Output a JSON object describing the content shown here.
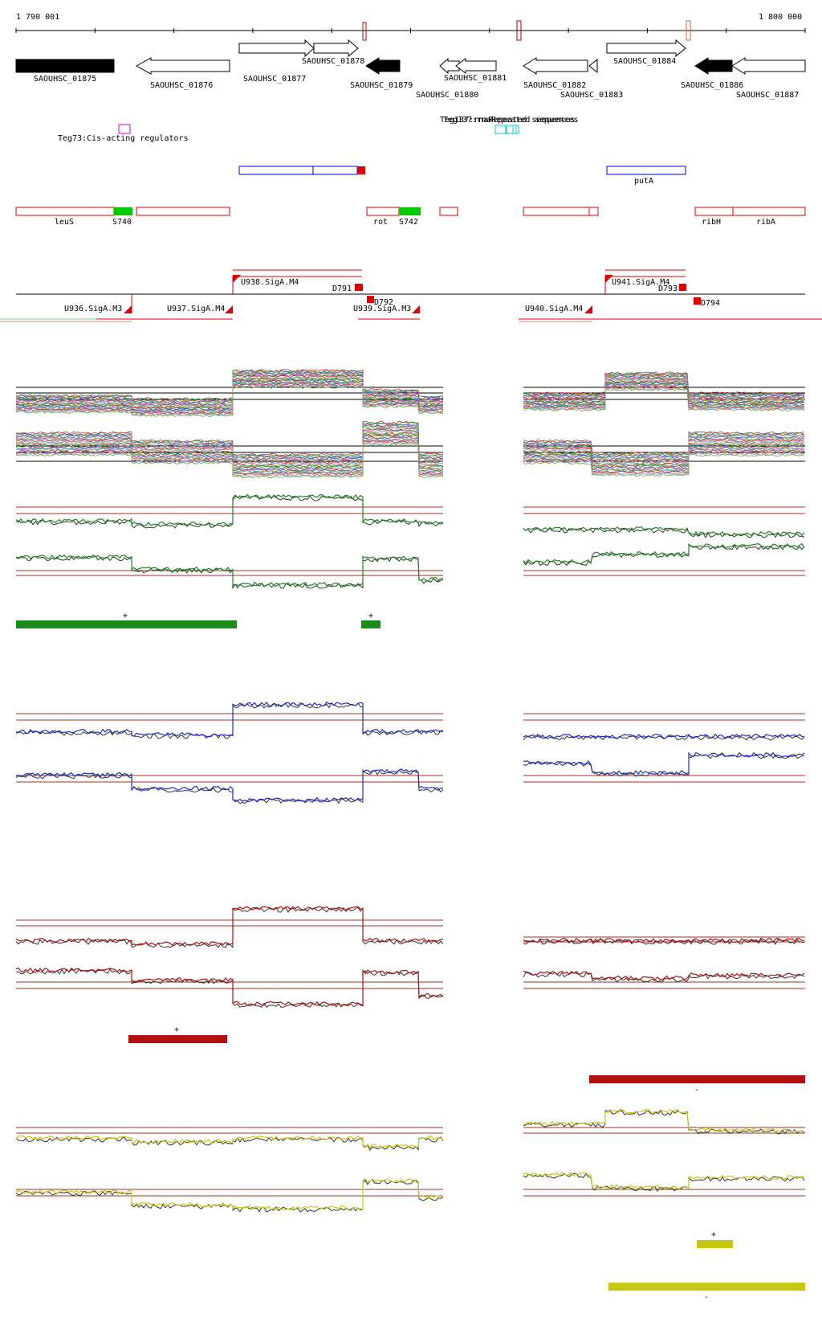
{
  "ruler": {
    "start_label": "1 790 001",
    "end_label": "1 800 000"
  },
  "genes": [
    {
      "label": "SAOUHSC_01875",
      "strand": "+",
      "fill": "black"
    },
    {
      "label": "SAOUHSC_01876",
      "strand": "-",
      "fill": "white"
    },
    {
      "label": "SAOUHSC_01877",
      "strand": "+",
      "fill": "white"
    },
    {
      "label": "SAOUHSC_01878",
      "strand": "+",
      "fill": "white"
    },
    {
      "label": "SAOUHSC_01879",
      "strand": "-",
      "fill": "black"
    },
    {
      "label": "SAOUHSC_01880",
      "strand": "-",
      "fill": "white"
    },
    {
      "label": "SAOUHSC_01881",
      "strand": "-",
      "fill": "white"
    },
    {
      "label": "SAOUHSC_01882",
      "strand": "-",
      "fill": "white"
    },
    {
      "label": "SAOUHSC_01883",
      "strand": "-",
      "fill": "white"
    },
    {
      "label": "SAOUHSC_01884",
      "strand": "+",
      "fill": "white"
    },
    {
      "label": "SAOUHSC_01886",
      "strand": "-",
      "fill": "black"
    },
    {
      "label": "SAOUHSC_01887",
      "strand": "-",
      "fill": "white"
    }
  ],
  "features": {
    "cis_regulator": "Teg73:Cis-acting regulators",
    "repeats": "Teg137:rnaRepeated sequences",
    "puta": "putA",
    "leus": "leuS",
    "s740": "S740",
    "rot": "rot",
    "s742": "S742",
    "ribh": "ribH",
    "riba": "ribA"
  },
  "promoters": [
    {
      "label": "U936.SigA.M3"
    },
    {
      "label": "U937.SigA.M4"
    },
    {
      "label": "U938.SigA.M4"
    },
    {
      "label": "D791"
    },
    {
      "label": "D792"
    },
    {
      "label": "U939.SigA.M3"
    },
    {
      "label": "U940.SigA.M4"
    },
    {
      "label": "U941.SigA.M4"
    },
    {
      "label": "D793"
    },
    {
      "label": "D794"
    }
  ],
  "tracks": [
    {
      "name": "all-conditions",
      "color": "#888888"
    },
    {
      "name": "green-condition",
      "color": "#1a8a1a",
      "bars": [
        {
          "sign": "+"
        },
        {
          "sign": "+"
        }
      ]
    },
    {
      "name": "blue-condition",
      "color": "#1a2fbf",
      "bars": []
    },
    {
      "name": "red-condition",
      "color": "#b01010",
      "bars": [
        {
          "sign": "+"
        },
        {
          "sign": "-"
        }
      ]
    },
    {
      "name": "yellow-condition",
      "color": "#c8c814",
      "bars": [
        {
          "sign": "+"
        },
        {
          "sign": "-"
        }
      ]
    }
  ],
  "colors": {
    "gene_outline": "#000000",
    "feature_red": "#e00000",
    "feature_green": "#00cc00",
    "feature_blue": "#0000cc",
    "cis_box": "#cc00cc",
    "repeat_box": "#00cccc",
    "threshold": "#a03020"
  }
}
